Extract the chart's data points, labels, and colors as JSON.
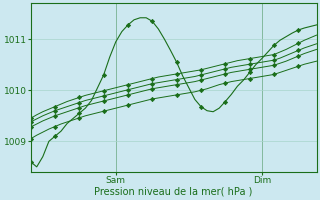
{
  "title": "Pression niveau de la mer( hPa )",
  "bg_color": "#cce8f0",
  "grid_color": "#a8d4cc",
  "line_color": "#1a6e1a",
  "yticks": [
    1009,
    1010,
    1011
  ],
  "ylim": [
    1008.4,
    1011.7
  ],
  "xlim": [
    0,
    47
  ],
  "xtick_positions": [
    14,
    38
  ],
  "xtick_labels": [
    "Sam",
    "Dim"
  ],
  "series": {
    "wavy": [
      1008.6,
      1008.5,
      1008.7,
      1009.0,
      1009.1,
      1009.2,
      1009.35,
      1009.45,
      1009.55,
      1009.65,
      1009.8,
      1010.05,
      1010.3,
      1010.65,
      1010.95,
      1011.15,
      1011.28,
      1011.38,
      1011.42,
      1011.42,
      1011.35,
      1011.2,
      1011.0,
      1010.78,
      1010.55,
      1010.28,
      1010.05,
      1009.82,
      1009.68,
      1009.6,
      1009.58,
      1009.65,
      1009.78,
      1009.92,
      1010.08,
      1010.2,
      1010.35,
      1010.5,
      1010.62,
      1010.75,
      1010.88,
      1010.98,
      1011.05,
      1011.12,
      1011.18,
      1011.22,
      1011.25,
      1011.28
    ],
    "straight_top": [
      1009.45,
      1009.52,
      1009.58,
      1009.63,
      1009.68,
      1009.73,
      1009.78,
      1009.82,
      1009.86,
      1009.9,
      1009.93,
      1009.96,
      1009.99,
      1010.02,
      1010.05,
      1010.08,
      1010.11,
      1010.14,
      1010.17,
      1010.2,
      1010.23,
      1010.26,
      1010.28,
      1010.3,
      1010.32,
      1010.34,
      1010.36,
      1010.38,
      1010.4,
      1010.43,
      1010.46,
      1010.49,
      1010.52,
      1010.55,
      1010.58,
      1010.6,
      1010.62,
      1010.64,
      1010.66,
      1010.68,
      1010.7,
      1010.75,
      1010.8,
      1010.86,
      1010.92,
      1010.98,
      1011.03,
      1011.08
    ],
    "straight_mid1": [
      1009.38,
      1009.44,
      1009.5,
      1009.55,
      1009.6,
      1009.64,
      1009.68,
      1009.72,
      1009.76,
      1009.8,
      1009.83,
      1009.86,
      1009.89,
      1009.92,
      1009.95,
      1009.98,
      1010.01,
      1010.04,
      1010.07,
      1010.1,
      1010.13,
      1010.15,
      1010.17,
      1010.19,
      1010.21,
      1010.23,
      1010.25,
      1010.27,
      1010.3,
      1010.33,
      1010.36,
      1010.39,
      1010.42,
      1010.45,
      1010.47,
      1010.49,
      1010.51,
      1010.53,
      1010.55,
      1010.57,
      1010.59,
      1010.63,
      1010.68,
      1010.73,
      1010.78,
      1010.83,
      1010.87,
      1010.91
    ],
    "straight_mid2": [
      1009.28,
      1009.34,
      1009.4,
      1009.45,
      1009.5,
      1009.54,
      1009.58,
      1009.62,
      1009.66,
      1009.7,
      1009.73,
      1009.76,
      1009.79,
      1009.82,
      1009.85,
      1009.88,
      1009.91,
      1009.94,
      1009.97,
      1010.0,
      1010.03,
      1010.05,
      1010.07,
      1010.09,
      1010.11,
      1010.13,
      1010.15,
      1010.17,
      1010.2,
      1010.23,
      1010.26,
      1010.29,
      1010.32,
      1010.35,
      1010.37,
      1010.39,
      1010.41,
      1010.43,
      1010.45,
      1010.47,
      1010.49,
      1010.53,
      1010.57,
      1010.62,
      1010.67,
      1010.72,
      1010.76,
      1010.8
    ],
    "straight_bot": [
      1009.05,
      1009.12,
      1009.18,
      1009.24,
      1009.29,
      1009.34,
      1009.38,
      1009.42,
      1009.46,
      1009.5,
      1009.53,
      1009.56,
      1009.59,
      1009.62,
      1009.65,
      1009.68,
      1009.71,
      1009.74,
      1009.77,
      1009.8,
      1009.83,
      1009.85,
      1009.87,
      1009.89,
      1009.91,
      1009.93,
      1009.95,
      1009.97,
      1010.0,
      1010.03,
      1010.07,
      1010.11,
      1010.14,
      1010.17,
      1010.19,
      1010.21,
      1010.23,
      1010.25,
      1010.27,
      1010.29,
      1010.31,
      1010.35,
      1010.39,
      1010.43,
      1010.47,
      1010.51,
      1010.54,
      1010.57
    ]
  }
}
